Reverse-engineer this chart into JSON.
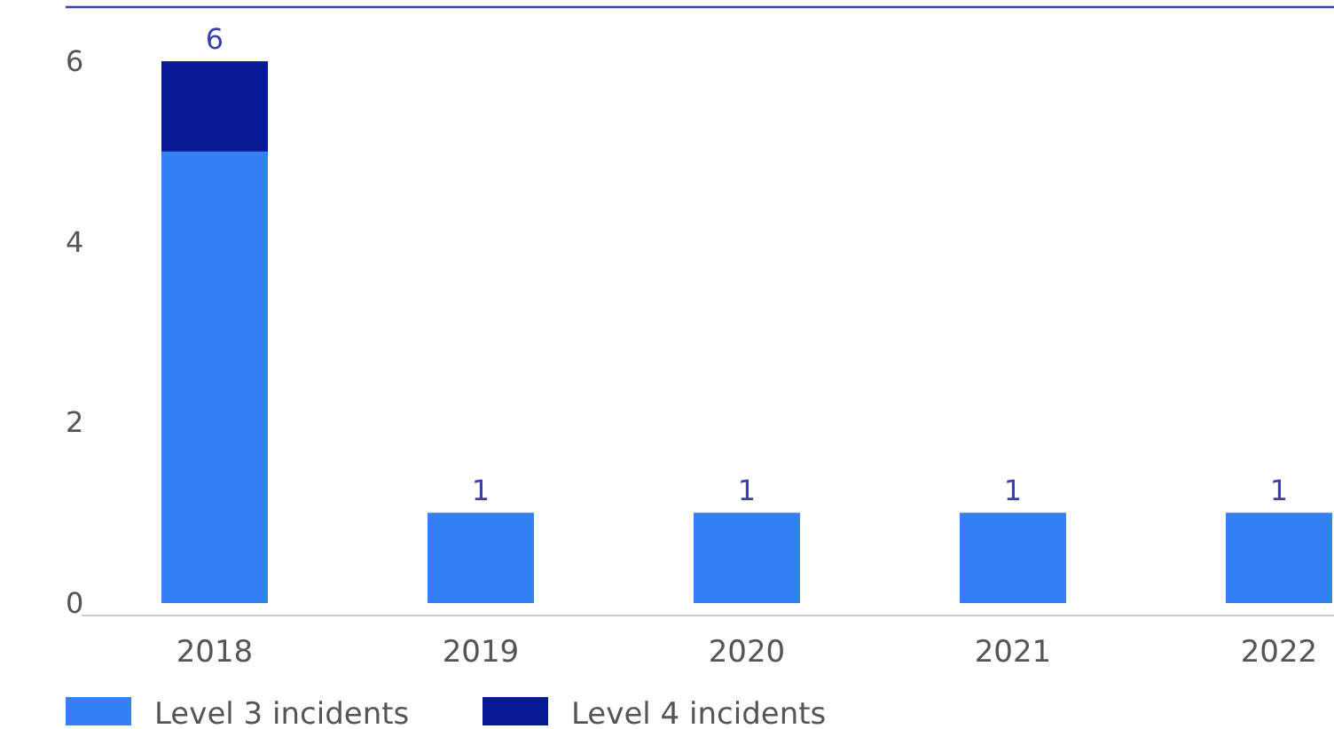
{
  "chart_data": {
    "type": "bar",
    "stacked": true,
    "categories": [
      "2018",
      "2019",
      "2020",
      "2021",
      "2022"
    ],
    "series": [
      {
        "name": "Level 3 incidents",
        "color": "#3381f5",
        "values": [
          5,
          1,
          1,
          1,
          1
        ]
      },
      {
        "name": "Level 4 incidents",
        "color": "#061a94",
        "values": [
          1,
          0,
          0,
          0,
          0
        ]
      }
    ],
    "ylim": [
      0,
      6.6
    ],
    "yticks": [
      0,
      2,
      4,
      6
    ],
    "grid": false,
    "legend": "bottom",
    "totals": [
      "6",
      "1",
      "1",
      "1",
      "1"
    ]
  }
}
